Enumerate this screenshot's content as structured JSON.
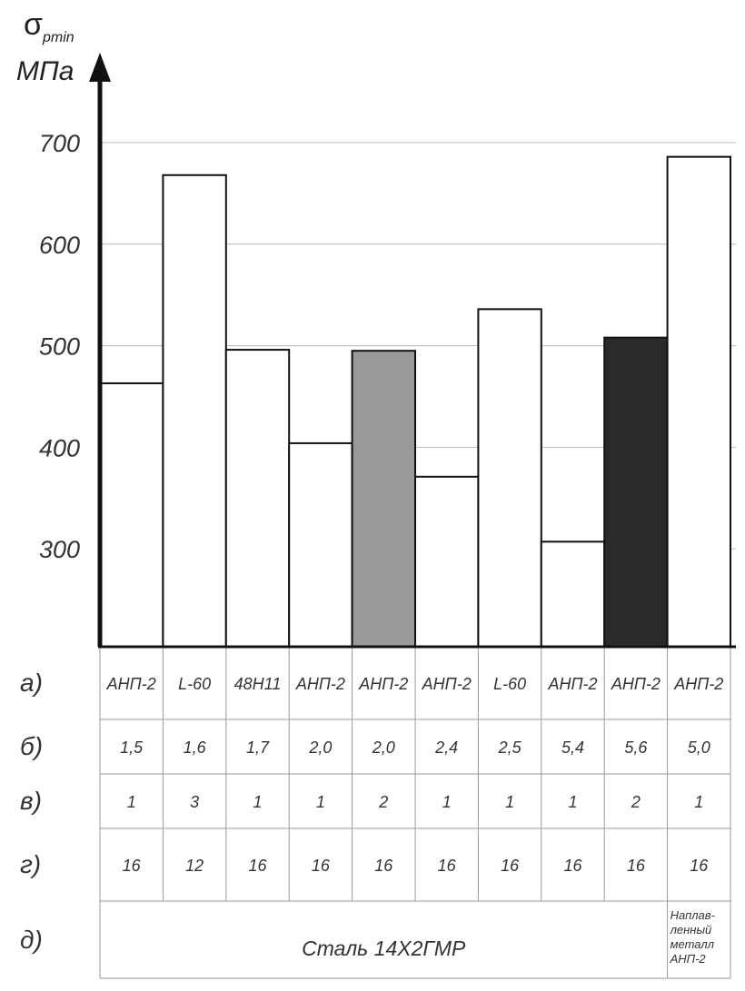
{
  "chart_data": {
    "type": "bar",
    "y_axis_symbol": "σ",
    "y_axis_subscript": "pmin",
    "ylabel": "МПа",
    "yticks": [
      300,
      400,
      500,
      600,
      700
    ],
    "ylim": [
      200,
      750
    ],
    "values": [
      463,
      668,
      496,
      404,
      495,
      371,
      536,
      307,
      508,
      686
    ],
    "bar_colors": [
      "#ffffff",
      "#ffffff",
      "#ffffff",
      "#ffffff",
      "#999999",
      "#ffffff",
      "#ffffff",
      "#ffffff",
      "#2a2a2a",
      "#ffffff"
    ],
    "rows": [
      {
        "label": "а)",
        "cells": [
          "АНП-2",
          "L-60",
          "48Н11",
          "АНП-2",
          "АНП-2",
          "АНП-2",
          "L-60",
          "АНП-2",
          "АНП-2",
          "АНП-2"
        ]
      },
      {
        "label": "б)",
        "cells": [
          "1,5",
          "1,6",
          "1,7",
          "2,0",
          "2,0",
          "2,4",
          "2,5",
          "5,4",
          "5,6",
          "5,0"
        ]
      },
      {
        "label": "в)",
        "cells": [
          "1",
          "3",
          "1",
          "1",
          "2",
          "1",
          "1",
          "1",
          "2",
          "1"
        ]
      },
      {
        "label": "г)",
        "cells": [
          "16",
          "12",
          "16",
          "16",
          "16",
          "16",
          "16",
          "16",
          "16",
          "16"
        ]
      }
    ],
    "row_d": {
      "label": "д)",
      "main_text": "Сталь 14Х2ГМР",
      "last_text_lines": [
        "Наплав-",
        "ленный",
        "металл",
        "АНП-2"
      ]
    }
  }
}
